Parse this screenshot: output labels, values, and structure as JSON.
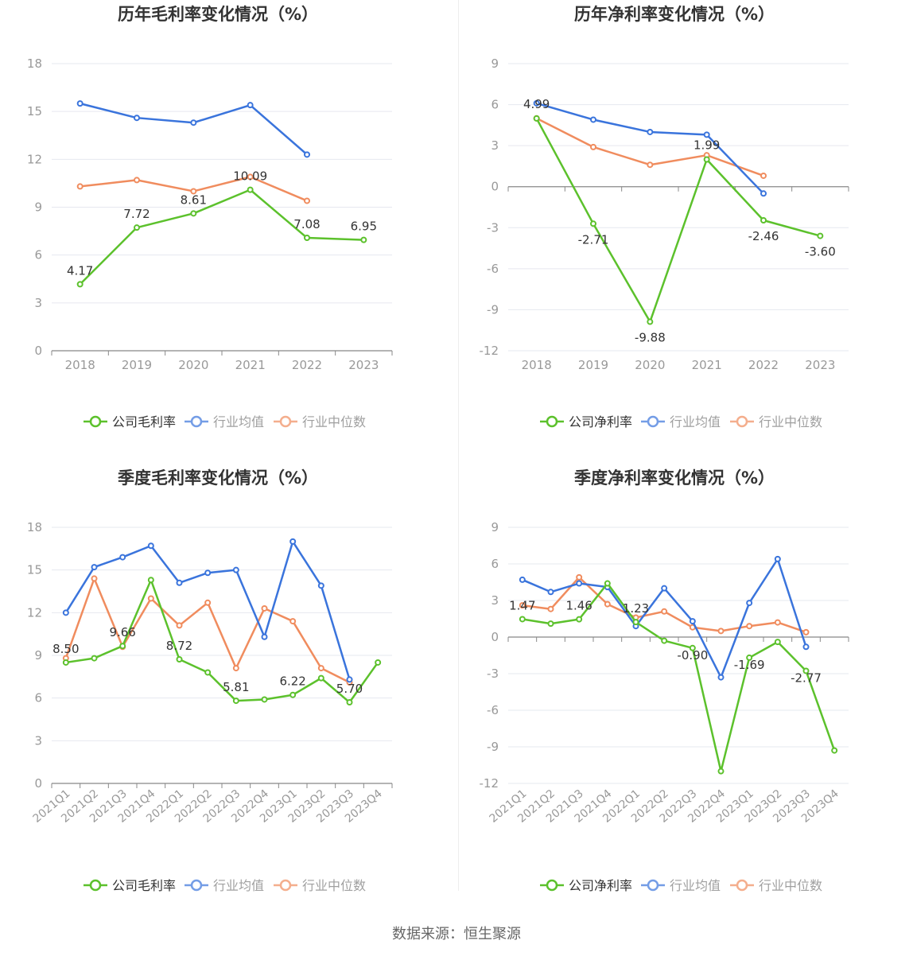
{
  "source": "数据来源：恒生聚源",
  "colors": {
    "company": "#5cc12c",
    "avg": "#3a74dc",
    "median": "#f08c5e",
    "grid": "#e6e8ef",
    "axis": "#888888",
    "label": "#333333",
    "tick": "#999999",
    "title": "#333333"
  },
  "chart_data": [
    {
      "type": "line",
      "title": "历年毛利率变化情况（%）",
      "categories": [
        "2018",
        "2019",
        "2020",
        "2021",
        "2022",
        "2023"
      ],
      "ylim": [
        0,
        18
      ],
      "yticks": [
        0,
        3,
        6,
        9,
        12,
        15,
        18
      ],
      "grid": true,
      "legend": "bottom",
      "rotate_x_labels": false,
      "series": [
        {
          "name": "公司毛利率",
          "color": "#5cc12c",
          "values": [
            4.17,
            7.72,
            8.61,
            10.09,
            7.08,
            6.95
          ],
          "labels": [
            "4.17",
            "7.72",
            "8.61",
            "10.09",
            "7.08",
            "6.95"
          ]
        },
        {
          "name": "行业均值",
          "color": "#3a74dc",
          "values": [
            15.5,
            14.6,
            14.3,
            15.4,
            12.3,
            null
          ]
        },
        {
          "name": "行业中位数",
          "color": "#f08c5e",
          "values": [
            10.3,
            10.7,
            10.0,
            10.9,
            9.4,
            null
          ]
        }
      ]
    },
    {
      "type": "line",
      "title": "历年净利率变化情况（%）",
      "categories": [
        "2018",
        "2019",
        "2020",
        "2021",
        "2022",
        "2023"
      ],
      "ylim": [
        -12,
        9
      ],
      "yticks": [
        -12,
        -9,
        -6,
        -3,
        0,
        3,
        6,
        9
      ],
      "grid": true,
      "legend": "bottom",
      "rotate_x_labels": false,
      "series": [
        {
          "name": "公司净利率",
          "color": "#5cc12c",
          "values": [
            4.99,
            -2.71,
            -9.88,
            1.99,
            -2.46,
            -3.6
          ],
          "labels": [
            "4.99",
            "-2.71",
            "-9.88",
            "1.99",
            "-2.46",
            "-3.60"
          ]
        },
        {
          "name": "行业均值",
          "color": "#3a74dc",
          "values": [
            6.1,
            4.9,
            4.0,
            3.8,
            -0.5,
            null
          ]
        },
        {
          "name": "行业中位数",
          "color": "#f08c5e",
          "values": [
            5.0,
            2.9,
            1.6,
            2.3,
            0.8,
            null
          ]
        }
      ]
    },
    {
      "type": "line",
      "title": "季度毛利率变化情况（%）",
      "categories": [
        "2021Q1",
        "2021Q2",
        "2021Q3",
        "2021Q4",
        "2022Q1",
        "2022Q2",
        "2022Q3",
        "2022Q4",
        "2023Q1",
        "2023Q2",
        "2023Q3",
        "2023Q4"
      ],
      "ylim": [
        0,
        18
      ],
      "yticks": [
        0,
        3,
        6,
        9,
        12,
        15,
        18
      ],
      "grid": true,
      "legend": "bottom",
      "rotate_x_labels": true,
      "series": [
        {
          "name": "公司毛利率",
          "color": "#5cc12c",
          "values": [
            8.5,
            8.8,
            9.66,
            14.3,
            8.72,
            7.8,
            5.81,
            5.9,
            6.22,
            7.4,
            5.7,
            8.5
          ],
          "labels": [
            "8.50",
            "",
            "9.66",
            "",
            "8.72",
            "",
            "5.81",
            "",
            "6.22",
            "",
            "5.70",
            ""
          ]
        },
        {
          "name": "行业均值",
          "color": "#3a74dc",
          "values": [
            12.0,
            15.2,
            15.9,
            16.7,
            14.1,
            14.8,
            15.0,
            10.3,
            17.0,
            13.9,
            7.3,
            null
          ]
        },
        {
          "name": "行业中位数",
          "color": "#f08c5e",
          "values": [
            8.8,
            14.4,
            9.6,
            13.0,
            11.1,
            12.7,
            8.1,
            12.3,
            11.4,
            8.1,
            7.1,
            null
          ]
        }
      ]
    },
    {
      "type": "line",
      "title": "季度净利率变化情况（%）",
      "categories": [
        "2021Q1",
        "2021Q2",
        "2021Q3",
        "2021Q4",
        "2022Q1",
        "2022Q2",
        "2022Q3",
        "2022Q4",
        "2023Q1",
        "2023Q2",
        "2023Q3",
        "2023Q4"
      ],
      "ylim": [
        -12,
        9
      ],
      "yticks": [
        -12,
        -9,
        -6,
        -3,
        0,
        3,
        6,
        9
      ],
      "grid": true,
      "legend": "bottom",
      "rotate_x_labels": true,
      "series": [
        {
          "name": "公司净利率",
          "color": "#5cc12c",
          "values": [
            1.47,
            1.1,
            1.46,
            4.4,
            1.23,
            -0.3,
            -0.9,
            -11.0,
            -1.69,
            -0.4,
            -2.77,
            -9.3
          ],
          "labels": [
            "1.47",
            "",
            "1.46",
            "",
            "1.23",
            "",
            "-0.90",
            "",
            "-1.69",
            "",
            "-2.77",
            ""
          ]
        },
        {
          "name": "行业均值",
          "color": "#3a74dc",
          "values": [
            4.7,
            3.7,
            4.4,
            4.1,
            0.9,
            4.0,
            1.3,
            -3.3,
            2.8,
            6.4,
            -0.8,
            null
          ]
        },
        {
          "name": "行业中位数",
          "color": "#f08c5e",
          "values": [
            2.6,
            2.3,
            4.9,
            2.7,
            1.6,
            2.1,
            0.8,
            0.5,
            0.9,
            1.2,
            0.4,
            null
          ]
        }
      ]
    }
  ]
}
